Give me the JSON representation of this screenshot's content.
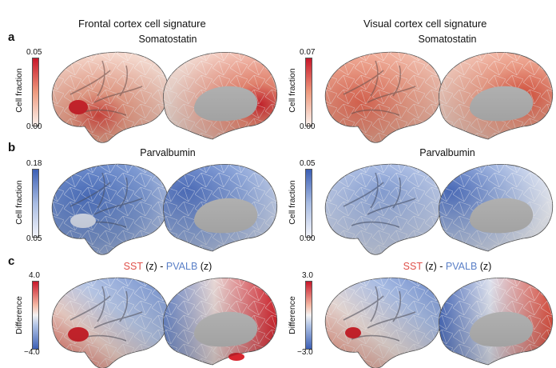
{
  "columns": {
    "left": "Frontal cortex cell signature",
    "right": "Visual cortex cell signature"
  },
  "rows": {
    "a": {
      "letter": "a",
      "left_title": "Somatostatin",
      "right_title": "Somatostatin",
      "left_max": "0.05",
      "left_min": "0.00",
      "right_max": "0.07",
      "right_min": "0.00",
      "axis_label": "Cell fraction"
    },
    "b": {
      "letter": "b",
      "left_title": "Parvalbumin",
      "right_title": "Parvalbumin",
      "left_max": "0.18",
      "left_min": "0.05",
      "right_max": "0.05",
      "right_min": "0.00",
      "axis_label": "Cell fraction"
    },
    "c": {
      "letter": "c",
      "title_a": "SST",
      "title_z1": " (z) - ",
      "title_b": "PVALB",
      "title_z2": " (z)",
      "left_max": "4.0",
      "left_min": "−4.0",
      "right_max": "3.0",
      "right_min": "−3.0",
      "axis_label": "Difference"
    }
  },
  "colors": {
    "red_high": "#d7262f",
    "red_mid": "#f2a68c",
    "white": "#f7f1ee",
    "blue_high": "#4a6fc0",
    "blue_mid": "#a8bde3",
    "medial_wall": "#bdbdbd"
  }
}
